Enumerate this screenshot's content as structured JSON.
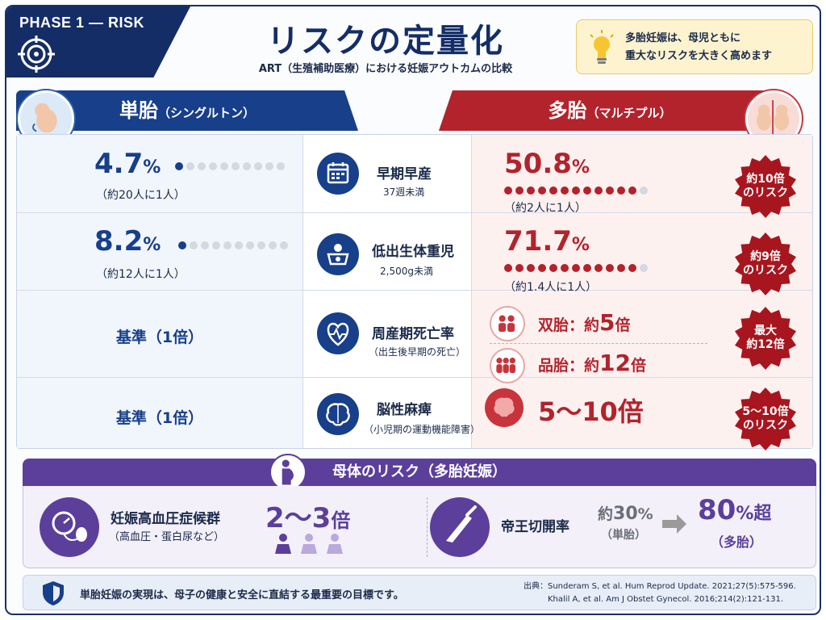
{
  "header": {
    "phase": "PHASE 1 — RISK",
    "title": "リスクの定量化",
    "subtitle": "ART（生殖補助医療）における妊娠アウトカムの比較",
    "tip_line1": "多胎妊娠は、母児ともに",
    "tip_line2": "重大なリスクを大きく高めます"
  },
  "columns": {
    "single_main": "単胎",
    "single_sub": "（シングルトン）",
    "multi_main": "多胎",
    "multi_sub": "（マルチプル）"
  },
  "rows": [
    {
      "single_pct": "4.7",
      "single_unit": "%",
      "single_ratio": "（約20人に1人）",
      "single_dots_on": 1,
      "dots_total": 10,
      "label": "早期早産",
      "sub": "37週未満",
      "multi_pct": "50.8",
      "multi_unit": "%",
      "multi_ratio": "（約2人に1人）",
      "multi_dots_on": 12,
      "multi_dots_total": 13,
      "badge_line1": "約10倍",
      "badge_line2": "のリスク",
      "icon": "calendar-icon"
    },
    {
      "single_pct": "8.2",
      "single_unit": "%",
      "single_ratio": "（約12人に1人）",
      "single_dots_on": 1,
      "dots_total": 10,
      "label": "低出生体重児",
      "sub": "2,500g未満",
      "multi_pct": "71.7",
      "multi_unit": "%",
      "multi_ratio": "（約1.4人に1人）",
      "multi_dots_on": 12,
      "multi_dots_total": 13,
      "badge_line1": "約9倍",
      "badge_line2": "のリスク",
      "icon": "baby-scale-icon"
    },
    {
      "single_text": "基準（1倍）",
      "label": "周産期死亡率",
      "sub": "（出生後早期の死亡）",
      "twin_label": "双胎：約",
      "twin_num": "5",
      "twin_unit": "倍",
      "triplet_label": "品胎：約",
      "triplet_num": "12",
      "triplet_unit": "倍",
      "badge_line1": "最大",
      "badge_line2": "約12倍",
      "icon": "heartbeat-icon"
    },
    {
      "single_text": "基準（1倍）",
      "label": "脳性麻痺",
      "sub": "（小児期の運動機能障害）",
      "multi_text": "5～10倍",
      "badge_line1": "5～10倍",
      "badge_line2": "のリスク",
      "icon": "brain-icon"
    }
  ],
  "maternal": {
    "title": "母体のリスク（多胎妊娠）",
    "hyper_label": "妊娠高血圧症候群",
    "hyper_sub": "（高血圧・蛋白尿など）",
    "hyper_value": "2～3",
    "hyper_unit": "倍",
    "cs_label": "帝王切開率",
    "cs_single_prefix": "約",
    "cs_single_num": "30",
    "cs_single_unit": "%",
    "cs_single_sub": "（単胎）",
    "cs_multi_num": "80",
    "cs_multi_unit": "%超",
    "cs_multi_sub": "（多胎）"
  },
  "footer": {
    "message": "単胎妊娠の実現は、母子の健康と安全に直結する最重要の目標です。",
    "cite1": "出典：Sunderam S, et al. Hum Reprod Update. 2021;27(5):575-596.",
    "cite2": "Khalil A, et al. Am J Obstet Gynecol. 2016;214(2):121-131."
  },
  "colors": {
    "navy": "#142d66",
    "blue": "#173f8a",
    "red": "#b3232c",
    "purple": "#5b3f9a"
  }
}
